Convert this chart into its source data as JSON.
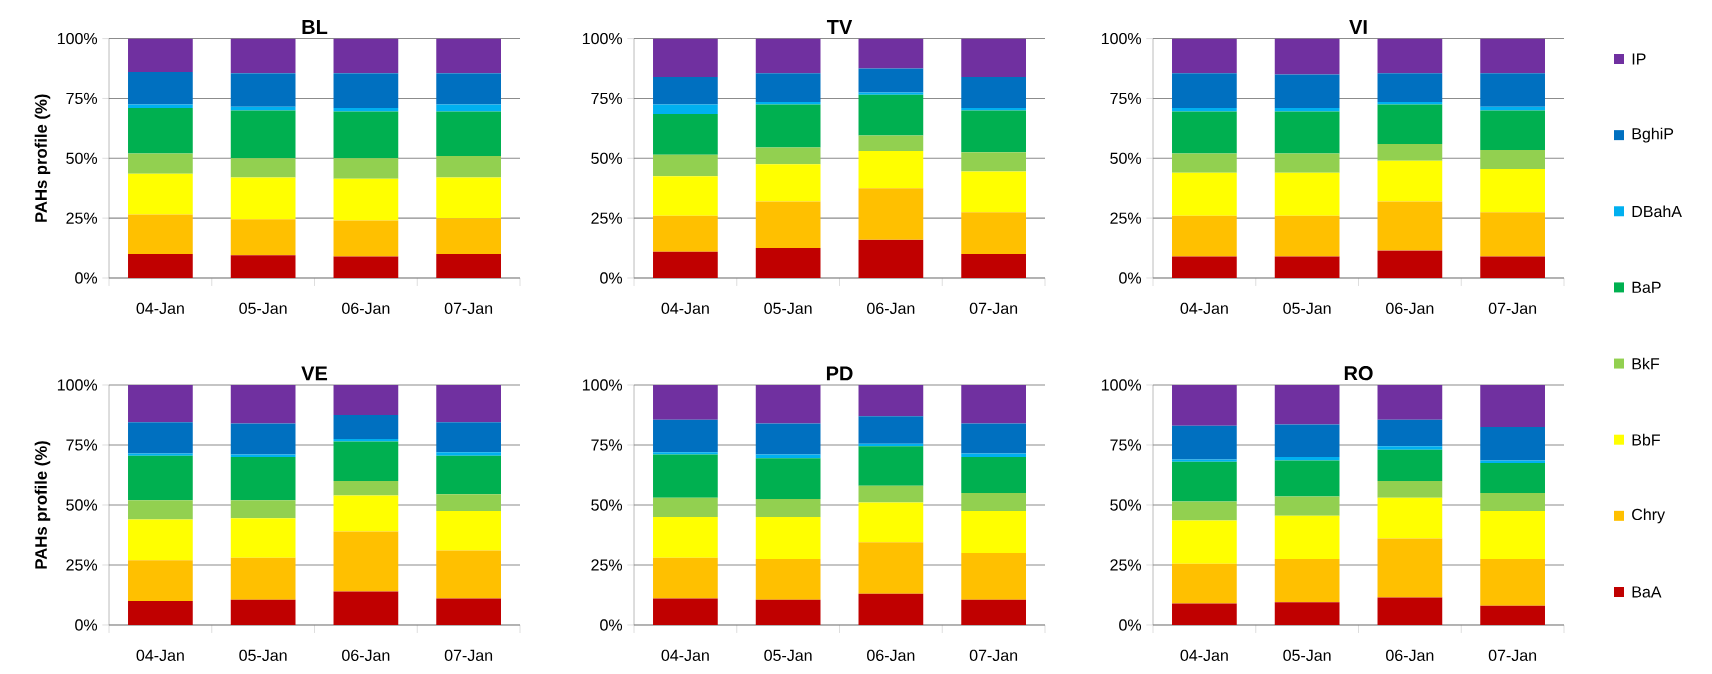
{
  "chart_data": [
    {
      "type": "bar",
      "title": "BL",
      "categories": [
        "04-Jan",
        "05-Jan",
        "06-Jan",
        "07-Jan"
      ],
      "stacked": true,
      "ylim": [
        0,
        100
      ],
      "yticks": [
        {
          "value": 0,
          "label": "0%"
        },
        {
          "value": 25,
          "label": "25%"
        },
        {
          "value": 50,
          "label": "50%"
        },
        {
          "value": 75,
          "label": "75%"
        },
        {
          "value": 100,
          "label": "100%"
        }
      ],
      "grid": "y",
      "ylabel": "PAHs profile (%)",
      "legend": "right",
      "series": [
        {
          "name": "BaA",
          "color": "#c00000",
          "values": [
            10,
            9.5,
            9,
            10
          ]
        },
        {
          "name": "Chry",
          "color": "#ffc000",
          "values": [
            16.5,
            15,
            15,
            15
          ]
        },
        {
          "name": "BbF",
          "color": "#ffff00",
          "values": [
            17,
            17.5,
            17.5,
            17
          ]
        },
        {
          "name": "BkF",
          "color": "#92d050",
          "values": [
            8.5,
            8,
            8.5,
            9
          ]
        },
        {
          "name": "BaP",
          "color": "#00b050",
          "values": [
            19,
            20,
            19.5,
            18.5
          ]
        },
        {
          "name": "DBahA",
          "color": "#00b0f0",
          "values": [
            1.5,
            1.5,
            1.5,
            3
          ]
        },
        {
          "name": "BghiP",
          "color": "#0070c0",
          "values": [
            13.5,
            14,
            14.5,
            13
          ]
        },
        {
          "name": "IP",
          "color": "#7030a0",
          "values": [
            14,
            14.5,
            14.5,
            14.5
          ]
        }
      ]
    },
    {
      "type": "bar",
      "title": "TV",
      "categories": [
        "04-Jan",
        "05-Jan",
        "06-Jan",
        "07-Jan"
      ],
      "stacked": true,
      "ylim": [
        0,
        100
      ],
      "yticks": [
        {
          "value": 0,
          "label": "0%"
        },
        {
          "value": 25,
          "label": "25%"
        },
        {
          "value": 50,
          "label": "50%"
        },
        {
          "value": 75,
          "label": "75%"
        },
        {
          "value": 100,
          "label": "100%"
        }
      ],
      "grid": "y",
      "series": [
        {
          "color": "#c00000",
          "values": [
            11,
            12.5,
            16,
            10
          ]
        },
        {
          "color": "#ffc000",
          "values": [
            15,
            19.5,
            21.5,
            17.5
          ]
        },
        {
          "color": "#ffff00",
          "values": [
            16.5,
            15.5,
            15.5,
            17
          ]
        },
        {
          "color": "#92d050",
          "values": [
            9,
            7,
            6.5,
            8
          ]
        },
        {
          "color": "#00b050",
          "values": [
            17,
            18,
            17,
            17.5
          ]
        },
        {
          "color": "#00b0f0",
          "values": [
            4,
            1,
            1,
            1
          ]
        },
        {
          "color": "#0070c0",
          "values": [
            11.5,
            12,
            10,
            13
          ]
        },
        {
          "color": "#7030a0",
          "values": [
            16,
            14.5,
            12.5,
            16
          ]
        }
      ]
    },
    {
      "type": "bar",
      "title": "VI",
      "categories": [
        "04-Jan",
        "05-Jan",
        "06-Jan",
        "07-Jan"
      ],
      "stacked": true,
      "ylim": [
        0,
        100
      ],
      "yticks": [
        {
          "value": 0,
          "label": "0%"
        },
        {
          "value": 25,
          "label": "25%"
        },
        {
          "value": 50,
          "label": "50%"
        },
        {
          "value": 75,
          "label": "75%"
        },
        {
          "value": 100,
          "label": "100%"
        }
      ],
      "grid": "y",
      "series": [
        {
          "color": "#c00000",
          "values": [
            9,
            9,
            11.5,
            9
          ]
        },
        {
          "color": "#ffc000",
          "values": [
            17,
            17,
            20.5,
            18.5
          ]
        },
        {
          "color": "#ffff00",
          "values": [
            18,
            18,
            17,
            18
          ]
        },
        {
          "color": "#92d050",
          "values": [
            8,
            8,
            7,
            8
          ]
        },
        {
          "color": "#00b050",
          "values": [
            17.5,
            17.5,
            16.5,
            16.5
          ]
        },
        {
          "color": "#00b0f0",
          "values": [
            1.5,
            1.5,
            1,
            1.5
          ]
        },
        {
          "color": "#0070c0",
          "values": [
            14.5,
            14,
            12,
            14
          ]
        },
        {
          "color": "#7030a0",
          "values": [
            14.5,
            15,
            14.5,
            14.5
          ]
        }
      ]
    },
    {
      "type": "bar",
      "title": "VE",
      "categories": [
        "04-Jan",
        "05-Jan",
        "06-Jan",
        "07-Jan"
      ],
      "stacked": true,
      "ylim": [
        0,
        100
      ],
      "yticks": [
        {
          "value": 0,
          "label": "0%"
        },
        {
          "value": 25,
          "label": "25%"
        },
        {
          "value": 50,
          "label": "50%"
        },
        {
          "value": 75,
          "label": "75%"
        },
        {
          "value": 100,
          "label": "100%"
        }
      ],
      "grid": "y",
      "ylabel": "PAHs profile (%)",
      "series": [
        {
          "color": "#c00000",
          "values": [
            10,
            10.5,
            14,
            11
          ]
        },
        {
          "color": "#ffc000",
          "values": [
            17,
            17.5,
            25,
            20
          ]
        },
        {
          "color": "#ffff00",
          "values": [
            17,
            16.5,
            15,
            16.5
          ]
        },
        {
          "color": "#92d050",
          "values": [
            8,
            7.5,
            6,
            7
          ]
        },
        {
          "color": "#00b050",
          "values": [
            18.5,
            18,
            16.5,
            16
          ]
        },
        {
          "color": "#00b0f0",
          "values": [
            1,
            1,
            1,
            1.5
          ]
        },
        {
          "color": "#0070c0",
          "values": [
            13,
            13,
            10,
            12.5
          ]
        },
        {
          "color": "#7030a0",
          "values": [
            15.5,
            16,
            12.5,
            15.5
          ]
        }
      ]
    },
    {
      "type": "bar",
      "title": "PD",
      "categories": [
        "04-Jan",
        "05-Jan",
        "06-Jan",
        "07-Jan"
      ],
      "stacked": true,
      "ylim": [
        0,
        100
      ],
      "yticks": [
        {
          "value": 0,
          "label": "0%"
        },
        {
          "value": 25,
          "label": "25%"
        },
        {
          "value": 50,
          "label": "50%"
        },
        {
          "value": 75,
          "label": "75%"
        },
        {
          "value": 100,
          "label": "100%"
        }
      ],
      "grid": "y",
      "series": [
        {
          "color": "#c00000",
          "values": [
            11,
            10.5,
            13,
            10.5
          ]
        },
        {
          "color": "#ffc000",
          "values": [
            17,
            17,
            21.5,
            19.5
          ]
        },
        {
          "color": "#ffff00",
          "values": [
            17,
            17.5,
            16.5,
            17.5
          ]
        },
        {
          "color": "#92d050",
          "values": [
            8,
            7.5,
            7,
            7.5
          ]
        },
        {
          "color": "#00b050",
          "values": [
            18,
            17,
            16.5,
            15
          ]
        },
        {
          "color": "#00b0f0",
          "values": [
            1,
            1.5,
            1,
            1.5
          ]
        },
        {
          "color": "#0070c0",
          "values": [
            13.5,
            13,
            11.5,
            12.5
          ]
        },
        {
          "color": "#7030a0",
          "values": [
            14.5,
            16,
            13,
            16
          ]
        }
      ]
    },
    {
      "type": "bar",
      "title": "RO",
      "categories": [
        "04-Jan",
        "05-Jan",
        "06-Jan",
        "07-Jan"
      ],
      "stacked": true,
      "ylim": [
        0,
        100
      ],
      "yticks": [
        {
          "value": 0,
          "label": "0%"
        },
        {
          "value": 25,
          "label": "25%"
        },
        {
          "value": 50,
          "label": "50%"
        },
        {
          "value": 75,
          "label": "75%"
        },
        {
          "value": 100,
          "label": "100%"
        }
      ],
      "grid": "y",
      "series": [
        {
          "color": "#c00000",
          "values": [
            9,
            9.5,
            11.5,
            8
          ]
        },
        {
          "color": "#ffc000",
          "values": [
            16.5,
            18,
            24.5,
            19.5
          ]
        },
        {
          "color": "#ffff00",
          "values": [
            18,
            18,
            17,
            20
          ]
        },
        {
          "color": "#92d050",
          "values": [
            8,
            8,
            7,
            7.5
          ]
        },
        {
          "color": "#00b050",
          "values": [
            16.5,
            15,
            13,
            12.5
          ]
        },
        {
          "color": "#00b0f0",
          "values": [
            1,
            1.5,
            1.5,
            1
          ]
        },
        {
          "color": "#0070c0",
          "values": [
            14,
            13.5,
            11,
            14
          ]
        },
        {
          "color": "#7030a0",
          "values": [
            17,
            16.5,
            14.5,
            17.5
          ]
        }
      ]
    }
  ]
}
